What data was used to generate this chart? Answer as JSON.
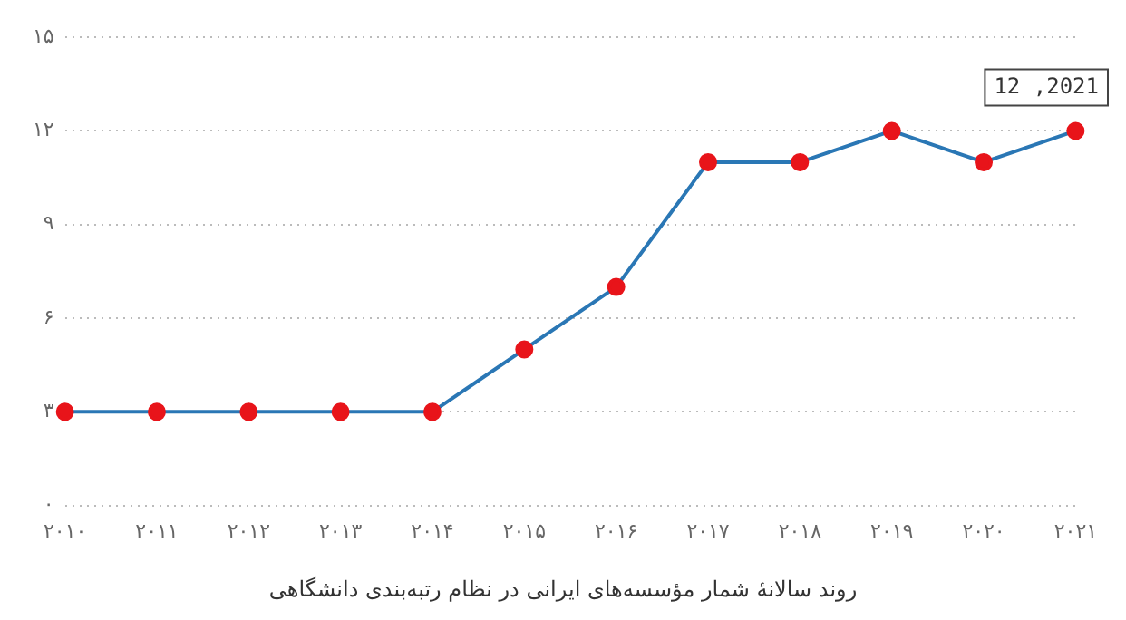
{
  "chart_data": {
    "type": "line",
    "title": "روند سالانهٔ شمار مؤسسه‌های ایرانی در نظام رتبه‌بندی دانشگاهی",
    "categories": [
      "۲۰۱۰",
      "۲۰۱۱",
      "۲۰۱۲",
      "۲۰۱۳",
      "۲۰۱۴",
      "۲۰۱۵",
      "۲۰۱۶",
      "۲۰۱۷",
      "۲۰۱۸",
      "۲۰۱۹",
      "۲۰۲۰",
      "۲۰۲۱"
    ],
    "series": [
      {
        "color": "#2a77b5",
        "colors": [
          "#e8141a",
          "#e8141a",
          "#e8141a",
          "#e8141a",
          "#e8141a",
          "#e8141a",
          "#e8141a",
          "#e8141a",
          "#e8141a",
          "#e8141a",
          "#e8141a",
          "#e8141a"
        ],
        "values": [
          3,
          3,
          3,
          3,
          3,
          5,
          7,
          11,
          11,
          12,
          11,
          12
        ]
      }
    ],
    "ylim": [
      0,
      15
    ],
    "yticks": [
      {
        "value": 0,
        "label": "۰"
      },
      {
        "value": 3,
        "label": "۳"
      },
      {
        "value": 6,
        "label": "۶"
      },
      {
        "value": 9,
        "label": "۹"
      },
      {
        "value": 12,
        "label": "۱۲"
      },
      {
        "value": 15,
        "label": "۱۵"
      }
    ],
    "grid": "y",
    "marker": "circle",
    "line_style": "solid",
    "legend": false,
    "annotations": [
      {
        "text": "12 ,2021",
        "x": "۲۰۲۱",
        "y": 12
      }
    ]
  }
}
